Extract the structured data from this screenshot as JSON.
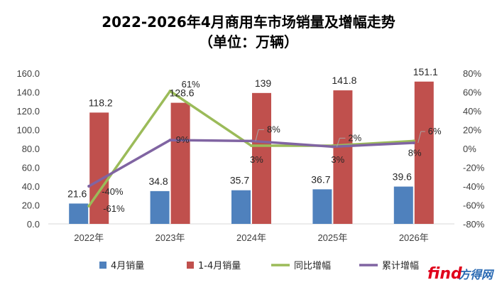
{
  "chart_data": {
    "type": "bar",
    "title": "2022-2026年4月商用车市场销量及增幅走势",
    "subtitle": "（单位：万辆）",
    "categories": [
      "2022年",
      "2023年",
      "2024年",
      "2025年",
      "2026年"
    ],
    "left_axis": {
      "min": 0,
      "max": 160,
      "step": 20,
      "tick_labels": [
        "0.0",
        "20.0",
        "40.0",
        "60.0",
        "80.0",
        "100.0",
        "120.0",
        "140.0",
        "160.0"
      ]
    },
    "right_axis": {
      "min": -80,
      "max": 80,
      "step": 20,
      "tick_labels": [
        "-80%",
        "-60%",
        "-40%",
        "-20%",
        "0%",
        "20%",
        "40%",
        "60%",
        "80%"
      ]
    },
    "series": [
      {
        "name": "4月销量",
        "kind": "bar",
        "axis": "left",
        "color": "#4f81bd",
        "values": [
          21.6,
          34.8,
          35.7,
          36.7,
          39.6
        ],
        "labels": [
          "21.6",
          "34.8",
          "35.7",
          "36.7",
          "39.6"
        ]
      },
      {
        "name": "1-4月销量",
        "kind": "bar",
        "axis": "left",
        "color": "#c0504d",
        "values": [
          118.2,
          128.6,
          139,
          141.8,
          151.1
        ],
        "labels": [
          "118.2",
          "128.6",
          "139",
          "141.8",
          "151.1"
        ]
      },
      {
        "name": "同比增幅",
        "kind": "line",
        "axis": "right",
        "color": "#9bbb59",
        "values": [
          -61,
          61,
          3,
          3,
          8
        ],
        "labels": [
          "-61%",
          "61%",
          "3%",
          "3%",
          "8%"
        ]
      },
      {
        "name": "累计增幅",
        "kind": "line",
        "axis": "right",
        "color": "#8064a2",
        "values": [
          -40,
          9,
          8,
          2,
          6
        ],
        "labels": [
          "-40%",
          "9%",
          "8%",
          "2%",
          "6%"
        ]
      }
    ],
    "grid": false,
    "legend_position": "bottom"
  },
  "watermark": {
    "text": "find方得网",
    "colors": [
      "#e0001b",
      "#2a6ab3"
    ]
  }
}
